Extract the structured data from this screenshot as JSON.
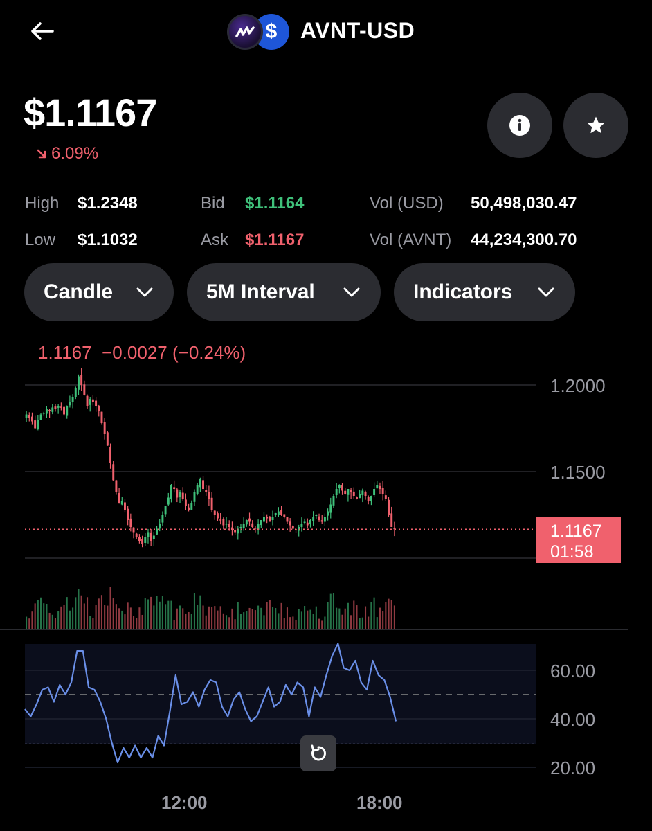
{
  "header": {
    "title": "AVNT-USD",
    "back_icon": "back-arrow-icon",
    "base_logo": "avnt-logo-icon",
    "quote_logo": "usd-coin-icon"
  },
  "summary": {
    "price": "$1.1167",
    "change": "6.09%",
    "change_direction": "down"
  },
  "actions": {
    "info_icon": "info-icon",
    "favorite_icon": "star-icon"
  },
  "stats": {
    "high_label": "High",
    "high_value": "$1.2348",
    "low_label": "Low",
    "low_value": "$1.1032",
    "bid_label": "Bid",
    "bid_value": "$1.1164",
    "ask_label": "Ask",
    "ask_value": "$1.1167",
    "vol_usd_label": "Vol (USD)",
    "vol_usd_value": "50,498,030.47",
    "vol_avnt_label": "Vol (AVNT)",
    "vol_avnt_value": "44,234,300.70"
  },
  "controls": {
    "chart_type": "Candle",
    "interval": "5M Interval",
    "indicators": "Indicators"
  },
  "chart": {
    "legend_price": "1.1167",
    "legend_change": "−0.0027 (−0.24%)",
    "current_price_tag": "1.1167",
    "countdown": "01:58",
    "price_axis": [
      "1.2000",
      "1.1500"
    ],
    "rsi_axis": [
      "60.00",
      "40.00",
      "20.00"
    ],
    "time_axis": [
      "12:00",
      "18:00"
    ]
  },
  "colors": {
    "up": "#3fc07a",
    "down": "#f0616d",
    "rsi_line": "#6a8fe8",
    "background": "#000000",
    "panel": "#2b2c31"
  },
  "chart_data": {
    "type": "candlestick",
    "interval": "5M",
    "price_ylim": [
      1.1,
      1.21
    ],
    "price_ticks": [
      1.2,
      1.15
    ],
    "current_price": 1.1167,
    "x_ticks": [
      "12:00",
      "18:00"
    ],
    "close_series": [
      1.183,
      1.181,
      1.179,
      1.175,
      1.18,
      1.183,
      1.184,
      1.186,
      1.185,
      1.187,
      1.186,
      1.188,
      1.187,
      1.183,
      1.188,
      1.19,
      1.193,
      1.198,
      1.205,
      1.2,
      1.194,
      1.188,
      1.192,
      1.19,
      1.188,
      1.185,
      1.178,
      1.172,
      1.165,
      1.155,
      1.145,
      1.138,
      1.132,
      1.133,
      1.128,
      1.122,
      1.118,
      1.115,
      1.112,
      1.11,
      1.108,
      1.112,
      1.115,
      1.11,
      1.113,
      1.117,
      1.12,
      1.125,
      1.13,
      1.135,
      1.142,
      1.14,
      1.135,
      1.138,
      1.134,
      1.13,
      1.128,
      1.132,
      1.138,
      1.142,
      1.146,
      1.14,
      1.138,
      1.134,
      1.128,
      1.125,
      1.123,
      1.122,
      1.119,
      1.12,
      1.118,
      1.116,
      1.115,
      1.117,
      1.118,
      1.12,
      1.122,
      1.121,
      1.118,
      1.117,
      1.12,
      1.122,
      1.124,
      1.123,
      1.121,
      1.124,
      1.126,
      1.127,
      1.125,
      1.124,
      1.121,
      1.119,
      1.117,
      1.116,
      1.118,
      1.12,
      1.121,
      1.119,
      1.122,
      1.124,
      1.125,
      1.122,
      1.121,
      1.124,
      1.127,
      1.131,
      1.136,
      1.14,
      1.142,
      1.139,
      1.137,
      1.14,
      1.138,
      1.136,
      1.134,
      1.137,
      1.139,
      1.136,
      1.133,
      1.136,
      1.14,
      1.142,
      1.14,
      1.137,
      1.134,
      1.125,
      1.118,
      1.1167
    ],
    "rsi_ylim": [
      15,
      72
    ],
    "rsi_ticks": [
      60,
      40,
      20
    ],
    "rsi_midline": 50,
    "rsi_series": [
      44,
      41,
      46,
      52,
      53,
      47,
      54,
      50,
      55,
      68,
      68,
      53,
      52,
      47,
      40,
      30,
      22,
      28,
      24,
      29,
      24,
      28,
      24,
      33,
      29,
      43,
      58,
      46,
      47,
      51,
      45,
      52,
      56,
      55,
      45,
      41,
      48,
      51,
      44,
      39,
      41,
      47,
      53,
      45,
      47,
      54,
      50,
      55,
      53,
      41,
      53,
      49,
      58,
      66,
      71,
      61,
      60,
      64,
      55,
      52,
      64,
      58,
      56,
      49,
      39
    ]
  }
}
